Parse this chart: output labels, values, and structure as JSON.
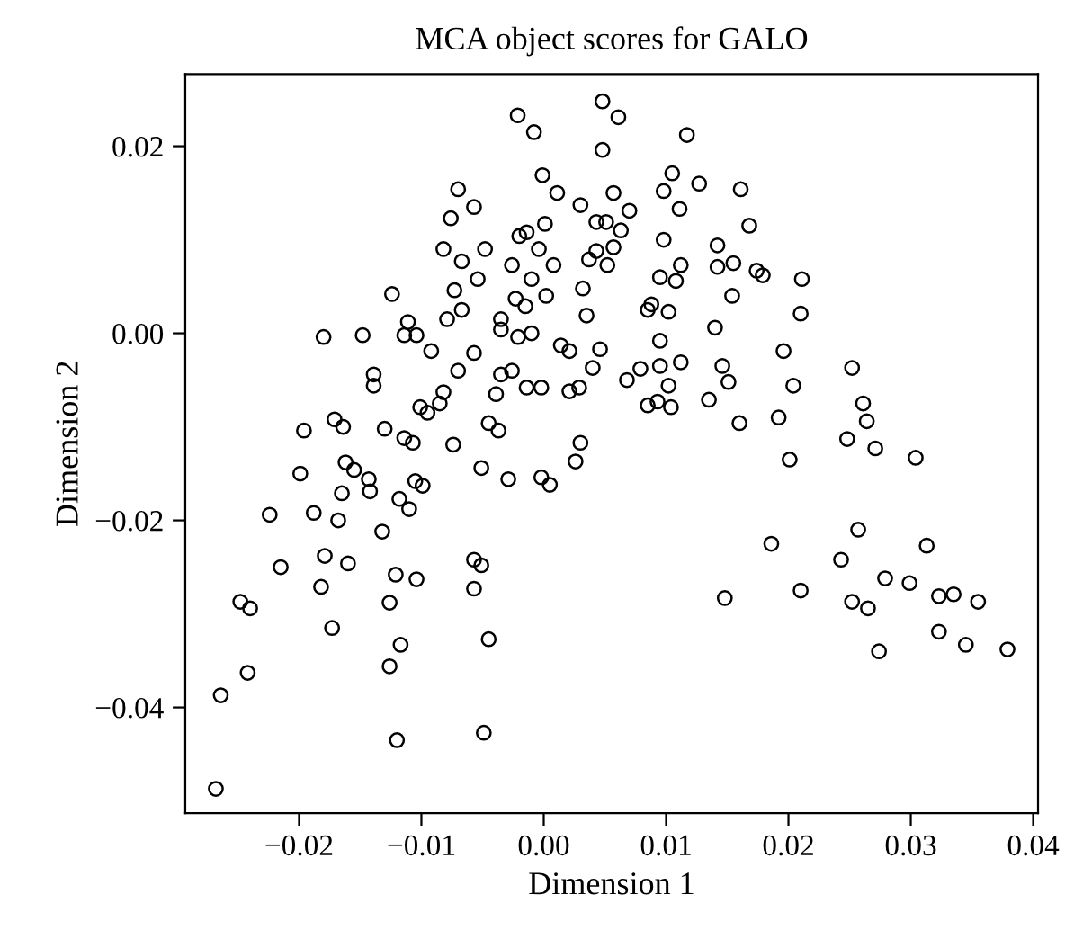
{
  "chart_data": {
    "type": "scatter",
    "title": "MCA object scores for GALO",
    "xlabel": "Dimension 1",
    "ylabel": "Dimension 2",
    "xlim": [
      -0.0293,
      0.0404
    ],
    "ylim": [
      -0.0513,
      0.0277
    ],
    "xticks": [
      {
        "value": -0.02,
        "label": "−0.02"
      },
      {
        "value": -0.01,
        "label": "−0.01"
      },
      {
        "value": 0.0,
        "label": "0.00"
      },
      {
        "value": 0.01,
        "label": "0.01"
      },
      {
        "value": 0.02,
        "label": "0.02"
      },
      {
        "value": 0.03,
        "label": "0.03"
      },
      {
        "value": 0.04,
        "label": "0.04"
      }
    ],
    "yticks": [
      {
        "value": -0.04,
        "label": "−0.04"
      },
      {
        "value": -0.02,
        "label": "−0.02"
      },
      {
        "value": 0.0,
        "label": "0.00"
      },
      {
        "value": 0.02,
        "label": "0.02"
      }
    ],
    "marker": "circle",
    "grid": false,
    "series": [
      {
        "color": "#000000",
        "x": [
          -0.00213,
          -0.0008,
          -0.0001,
          0.0011,
          -0.007,
          -0.0057,
          -0.0076,
          0.0001,
          -0.0014,
          -0.002,
          -0.0082,
          -0.0048,
          -0.0004,
          -0.0067,
          -0.0026,
          0.0008,
          -0.0054,
          -0.001,
          -0.0073,
          -0.0124,
          0.0002,
          -0.0023,
          -0.0015,
          -0.0067,
          -0.0111,
          -0.0079,
          -0.0035,
          -0.0035,
          -0.0021,
          -0.001,
          -0.018,
          -0.0148,
          -0.0114,
          -0.0104,
          -0.0092,
          -0.0057,
          -0.007,
          -0.0139,
          -0.0139,
          -0.0026,
          -0.0035,
          -0.0014,
          -0.0002,
          -0.0039,
          -0.0082,
          -0.0085,
          -0.0101,
          -0.0095,
          -0.0171,
          -0.0164,
          -0.0196,
          -0.013,
          -0.0114,
          -0.0107,
          -0.0074,
          -0.0045,
          -0.0037,
          0.0048,
          0.0061,
          0.0117,
          0.0048,
          0.0105,
          0.0127,
          0.0161,
          0.0057,
          0.0098,
          0.003,
          0.007,
          0.0111,
          0.0043,
          0.0051,
          0.0063,
          0.0168,
          0.0098,
          0.0057,
          0.0043,
          0.0037,
          0.0052,
          0.0142,
          0.0142,
          0.0155,
          0.0112,
          0.0095,
          0.0108,
          0.0174,
          0.0179,
          0.0211,
          0.0032,
          0.0154,
          0.0088,
          0.0085,
          0.0102,
          0.0035,
          0.021,
          0.014,
          0.0095,
          0.0014,
          0.0021,
          0.0046,
          0.0196,
          0.004,
          0.0079,
          0.0068,
          0.0095,
          0.0112,
          0.0146,
          0.0151,
          0.0102,
          0.0252,
          0.0204,
          0.0021,
          0.0029,
          0.0085,
          0.0093,
          0.0104,
          0.0135,
          0.016,
          0.0192,
          0.0261,
          0.0264,
          0.0248,
          0.0271,
          0.003,
          -0.0162,
          -0.0155,
          -0.0199,
          -0.0143,
          -0.0142,
          -0.0165,
          -0.0105,
          -0.0099,
          -0.0051,
          -0.0029,
          -0.0002,
          0.0005,
          -0.0118,
          -0.011,
          -0.0224,
          -0.0188,
          -0.0168,
          -0.0132,
          -0.0179,
          -0.016,
          -0.0215,
          -0.0121,
          -0.0104,
          -0.0057,
          -0.0051,
          -0.0057,
          -0.0182,
          -0.0126,
          -0.0248,
          -0.024,
          -0.0173,
          -0.0117,
          -0.0045,
          -0.0126,
          -0.0242,
          -0.0264,
          -0.0049,
          -0.012,
          -0.0268,
          0.0026,
          0.0201,
          0.0304,
          0.0257,
          0.0186,
          0.0313,
          0.0243,
          0.0279,
          0.0299,
          0.0323,
          0.0335,
          0.0355,
          0.0148,
          0.021,
          0.0252,
          0.0265,
          0.0323,
          0.0345,
          0.0274,
          0.0379
        ],
        "values": [
          0.0233,
          0.0215,
          0.0169,
          0.015,
          0.0154,
          0.0135,
          0.0123,
          0.0117,
          0.0108,
          0.0104,
          0.009,
          0.009,
          0.009,
          0.0077,
          0.0073,
          0.0073,
          0.0058,
          0.0058,
          0.0046,
          0.0042,
          0.004,
          0.0037,
          0.0029,
          0.0025,
          0.0012,
          0.0015,
          0.0015,
          0.0004,
          -0.0004,
          0.0,
          -0.0004,
          -0.0002,
          -0.0002,
          -0.0002,
          -0.0019,
          -0.0021,
          -0.004,
          -0.0044,
          -0.0056,
          -0.004,
          -0.0044,
          -0.0058,
          -0.0058,
          -0.0065,
          -0.0063,
          -0.0075,
          -0.0079,
          -0.0085,
          -0.0092,
          -0.01,
          -0.0104,
          -0.0102,
          -0.0112,
          -0.0117,
          -0.0119,
          -0.0096,
          -0.0104,
          0.0248,
          0.0231,
          0.0212,
          0.0196,
          0.0171,
          0.016,
          0.0154,
          0.015,
          0.0152,
          0.0137,
          0.0131,
          0.0133,
          0.0119,
          0.0119,
          0.011,
          0.0115,
          0.01,
          0.0092,
          0.0088,
          0.0079,
          0.0073,
          0.0094,
          0.0071,
          0.0075,
          0.0073,
          0.006,
          0.0056,
          0.0067,
          0.0062,
          0.0058,
          0.0048,
          0.004,
          0.0031,
          0.0025,
          0.0023,
          0.0019,
          0.0021,
          0.0006,
          -0.0008,
          -0.0013,
          -0.0019,
          -0.0017,
          -0.0019,
          -0.0037,
          -0.0038,
          -0.005,
          -0.0035,
          -0.0031,
          -0.0035,
          -0.0052,
          -0.0056,
          -0.0037,
          -0.0056,
          -0.0062,
          -0.0058,
          -0.0077,
          -0.0073,
          -0.0079,
          -0.0071,
          -0.0096,
          -0.009,
          -0.0075,
          -0.0094,
          -0.0113,
          -0.0123,
          -0.0117,
          -0.0138,
          -0.0146,
          -0.015,
          -0.0156,
          -0.0169,
          -0.0171,
          -0.0158,
          -0.0163,
          -0.0144,
          -0.0156,
          -0.0154,
          -0.0162,
          -0.0177,
          -0.0188,
          -0.0194,
          -0.0192,
          -0.02,
          -0.0212,
          -0.0238,
          -0.0246,
          -0.025,
          -0.0258,
          -0.0263,
          -0.0242,
          -0.0248,
          -0.0273,
          -0.0271,
          -0.0288,
          -0.0287,
          -0.0294,
          -0.0315,
          -0.0333,
          -0.0327,
          -0.0356,
          -0.0363,
          -0.0387,
          -0.0427,
          -0.0435,
          -0.0487,
          -0.0137,
          -0.0135,
          -0.0133,
          -0.021,
          -0.0225,
          -0.0227,
          -0.0242,
          -0.0262,
          -0.0267,
          -0.0281,
          -0.0279,
          -0.0287,
          -0.0283,
          -0.0275,
          -0.0287,
          -0.0294,
          -0.0319,
          -0.0333,
          -0.034,
          -0.0338
        ]
      }
    ]
  }
}
